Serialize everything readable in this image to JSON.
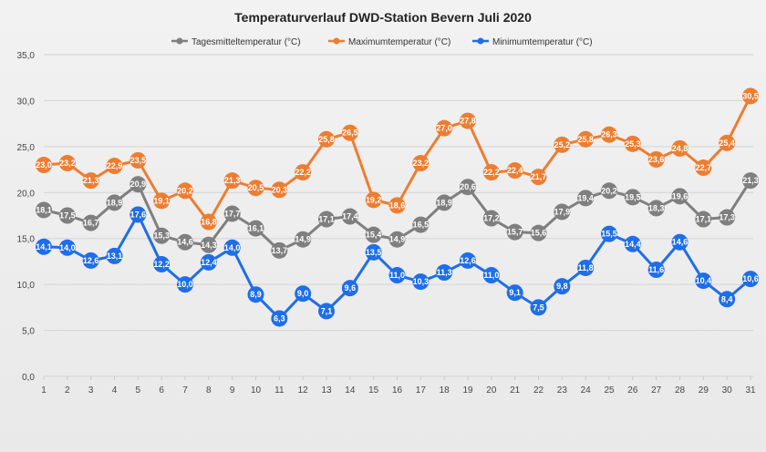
{
  "chart_data": {
    "type": "line",
    "title": "Temperaturverlauf  DWD-Station  Bevern Juli 2020",
    "xlabel": "",
    "ylabel": "",
    "categories": [
      "1",
      "2",
      "3",
      "4",
      "5",
      "6",
      "7",
      "8",
      "9",
      "10",
      "11",
      "12",
      "13",
      "14",
      "15",
      "16",
      "17",
      "18",
      "19",
      "20",
      "21",
      "22",
      "23",
      "24",
      "25",
      "26",
      "27",
      "28",
      "29",
      "30",
      "31"
    ],
    "y_ticks": [
      "0,0",
      "5,0",
      "10,0",
      "15,0",
      "20,0",
      "25,0",
      "30,0",
      "35,0"
    ],
    "ylim": [
      0,
      35
    ],
    "grid": true,
    "legend_position": "top",
    "series": [
      {
        "name": "Tagesmitteltemperatur (°C)",
        "color": "#7f7f7f",
        "values": [
          18.1,
          17.5,
          16.7,
          18.9,
          20.9,
          15.3,
          14.6,
          14.3,
          17.7,
          16.1,
          13.7,
          14.9,
          17.1,
          17.4,
          15.4,
          14.9,
          16.5,
          18.9,
          20.6,
          17.2,
          15.7,
          15.6,
          17.9,
          19.4,
          20.2,
          19.5,
          18.3,
          19.6,
          17.1,
          17.3,
          21.3
        ],
        "labels": [
          "18,1",
          "17,5",
          "16,7",
          "18,9",
          "20,9",
          "15,3",
          "14,6",
          "14,3",
          "17,7",
          "16,1",
          "13,7",
          "14,9",
          "17,1",
          "17,4",
          "15,4",
          "14,9",
          "16,5",
          "18,9",
          "20,6",
          "17,2",
          "15,7",
          "15,6",
          "17,9",
          "19,4",
          "20,2",
          "19,5",
          "18,3",
          "19,6",
          "17,1",
          "17,3",
          "21,3"
        ]
      },
      {
        "name": "Maximumtemperatur (°C)",
        "color": "#ed7d31",
        "values": [
          23.0,
          23.2,
          21.3,
          22.9,
          23.5,
          19.1,
          20.2,
          16.8,
          21.3,
          20.5,
          20.3,
          22.2,
          25.8,
          26.5,
          19.2,
          18.6,
          23.2,
          27.0,
          27.8,
          22.2,
          22.4,
          21.7,
          25.2,
          25.8,
          26.3,
          25.3,
          23.6,
          24.8,
          22.7,
          25.4,
          30.5
        ],
        "labels": [
          "23,0",
          "23,2",
          "21,3",
          "22,9",
          "23,5",
          "19,1",
          "20,2",
          "16,8",
          "21,3",
          "20,5",
          "20,3",
          "22,2",
          "25,8",
          "26,5",
          "19,2",
          "18,6",
          "23,2",
          "27,0",
          "27,8",
          "22,2",
          "22,4",
          "21,7",
          "25,2",
          "25,8",
          "26,3",
          "25,3",
          "23,6",
          "24,8",
          "22,7",
          "25,4",
          "30,5"
        ]
      },
      {
        "name": "Minimumtemperatur (°C)",
        "color": "#1f6ee8",
        "values": [
          14.1,
          14.0,
          12.6,
          13.1,
          17.6,
          12.2,
          10.0,
          12.4,
          14.0,
          8.9,
          6.3,
          9.0,
          7.1,
          9.6,
          13.5,
          11.0,
          10.3,
          11.3,
          12.6,
          11.0,
          9.1,
          7.5,
          9.8,
          11.8,
          15.5,
          14.4,
          11.6,
          14.6,
          10.4,
          8.4,
          10.6
        ],
        "labels": [
          "14,1",
          "14,0",
          "12,6",
          "13,1",
          "17,6",
          "12,2",
          "10,0",
          "12,4",
          "14,0",
          "8,9",
          "6,3",
          "9,0",
          "7,1",
          "9,6",
          "13,5",
          "11,0",
          "10,3",
          "11,3",
          "12,6",
          "11,0",
          "9,1",
          "7,5",
          "9,8",
          "11,8",
          "15,5",
          "14,4",
          "11,6",
          "14,6",
          "10,4",
          "8,4",
          "10,6"
        ]
      }
    ]
  }
}
